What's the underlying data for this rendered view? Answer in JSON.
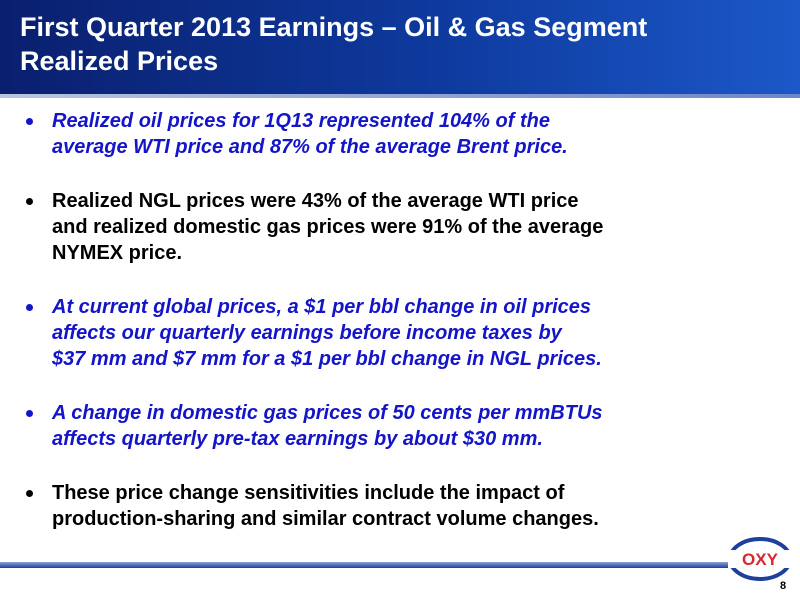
{
  "header": {
    "title_lines": [
      "First Quarter 2013 Earnings – Oil & Gas Segment",
      "Realized Prices"
    ]
  },
  "bullets": [
    {
      "color": "#1414c8",
      "italic": true,
      "lines": [
        "Realized oil prices for 1Q13 represented 104% of the",
        "average WTI price and 87% of the average Brent price."
      ]
    },
    {
      "color": "#000000",
      "italic": false,
      "lines": [
        "Realized NGL prices were 43% of the average WTI price",
        "and realized domestic gas prices were 91% of the average",
        "NYMEX price."
      ]
    },
    {
      "color": "#1414c8",
      "italic": true,
      "lines": [
        "At current global prices, a $1 per bbl change in oil prices",
        "affects our quarterly earnings before income taxes by",
        "$37 mm and $7 mm for a $1 per bbl change in NGL prices."
      ]
    },
    {
      "color": "#1414c8",
      "italic": true,
      "lines": [
        "A change in domestic gas prices of 50 cents per mmBTUs",
        "affects quarterly pre-tax earnings by about $30 mm."
      ]
    },
    {
      "color": "#000000",
      "italic": false,
      "lines": [
        "These price change sensitivities include the impact of",
        "production-sharing and similar contract volume changes."
      ]
    }
  ],
  "footer": {
    "logo": "OXY",
    "page_number": "8"
  }
}
